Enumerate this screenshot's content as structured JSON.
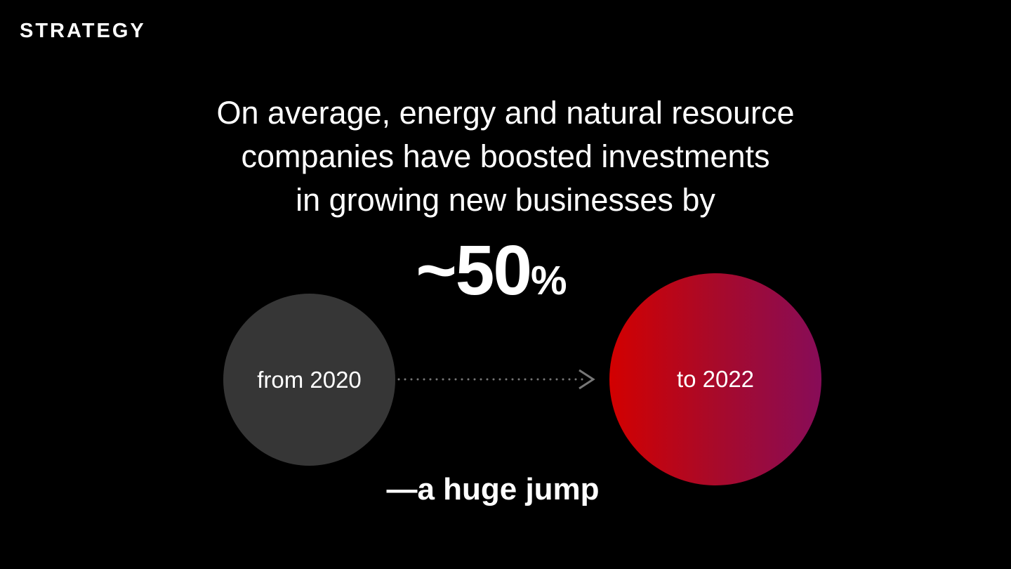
{
  "section_label": "STRATEGY",
  "headline": [
    "On average, energy and natural resource",
    "companies have boosted investments",
    "in growing new businesses by"
  ],
  "stat": {
    "value": "~50",
    "unit": "%"
  },
  "from_circle": {
    "label": "from 2020",
    "color": "#363636"
  },
  "to_circle": {
    "label": "to 2022",
    "gradient": [
      "#d20000",
      "#870c58"
    ]
  },
  "arrow": {
    "icon": "dotted-arrow-right-icon",
    "color": "#777777"
  },
  "tagline": "—a huge jump"
}
